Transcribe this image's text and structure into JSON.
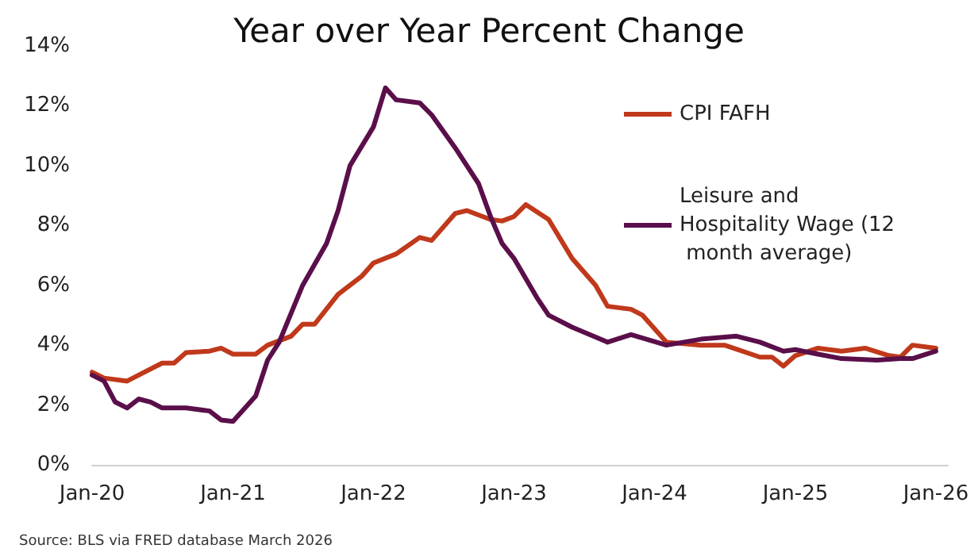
{
  "chart_data": {
    "type": "line",
    "title": "Year over Year Percent Change",
    "annotations": [
      "Source: BLS via FRED database March 2026"
    ],
    "ylim": [
      0,
      14
    ],
    "yticks": [
      {
        "value": 0,
        "label": "0%"
      },
      {
        "value": 2,
        "label": "2%"
      },
      {
        "value": 4,
        "label": "4%"
      },
      {
        "value": 6,
        "label": "6%"
      },
      {
        "value": 8,
        "label": "8%"
      },
      {
        "value": 10,
        "label": "10%"
      },
      {
        "value": 12,
        "label": "12%"
      },
      {
        "value": 14,
        "label": "14%"
      }
    ],
    "xlim": [
      "2020-01",
      "2026-02"
    ],
    "xticks": [
      {
        "value": "2020-01",
        "label": "Jan-20"
      },
      {
        "value": "2021-01",
        "label": "Jan-21"
      },
      {
        "value": "2022-01",
        "label": "Jan-22"
      },
      {
        "value": "2023-01",
        "label": "Jan-23"
      },
      {
        "value": "2024-01",
        "label": "Jan-24"
      },
      {
        "value": "2025-01",
        "label": "Jan-25"
      },
      {
        "value": "2026-01",
        "label": "Jan-26"
      }
    ],
    "grid": false,
    "legend": "top right",
    "marker": "none",
    "line_style": "solid",
    "series": [
      {
        "name": "CPI FAFH",
        "color": "#c0391b",
        "x": [
          "2020-01",
          "2020-02",
          "2020-04",
          "2020-05",
          "2020-07",
          "2020-08",
          "2020-09",
          "2020-11",
          "2020-12",
          "2021-01",
          "2021-03",
          "2021-04",
          "2021-06",
          "2021-07",
          "2021-08",
          "2021-10",
          "2021-12",
          "2022-01",
          "2022-03",
          "2022-05",
          "2022-06",
          "2022-08",
          "2022-09",
          "2022-11",
          "2022-12",
          "2023-01",
          "2023-02",
          "2023-04",
          "2023-06",
          "2023-08",
          "2023-09",
          "2023-11",
          "2023-12",
          "2024-02",
          "2024-05",
          "2024-07",
          "2024-10",
          "2024-11",
          "2024-12",
          "2025-01",
          "2025-03",
          "2025-05",
          "2025-07",
          "2025-09",
          "2025-10",
          "2025-11",
          "2026-01"
        ],
        "values": [
          3.1,
          2.9,
          2.8,
          3.0,
          3.4,
          3.4,
          3.75,
          3.8,
          3.9,
          3.7,
          3.7,
          4.0,
          4.3,
          4.7,
          4.7,
          5.7,
          6.3,
          6.75,
          7.05,
          7.6,
          7.5,
          8.4,
          8.5,
          8.2,
          8.15,
          8.3,
          8.7,
          8.2,
          6.9,
          6.0,
          5.3,
          5.2,
          5.0,
          4.1,
          4.0,
          4.0,
          3.6,
          3.6,
          3.3,
          3.65,
          3.9,
          3.8,
          3.9,
          3.65,
          3.6,
          4.0,
          3.9
        ]
      },
      {
        "name": "Leisure and Hospitality Wage (12 month average)",
        "color": "#5a0f4a",
        "x": [
          "2020-01",
          "2020-02",
          "2020-03",
          "2020-04",
          "2020-05",
          "2020-06",
          "2020-07",
          "2020-09",
          "2020-11",
          "2020-12",
          "2021-01",
          "2021-03",
          "2021-04",
          "2021-05",
          "2021-07",
          "2021-09",
          "2021-10",
          "2021-11",
          "2022-01",
          "2022-02",
          "2022-03",
          "2022-05",
          "2022-06",
          "2022-08",
          "2022-10",
          "2022-11",
          "2022-12",
          "2023-01",
          "2023-03",
          "2023-04",
          "2023-06",
          "2023-09",
          "2023-11",
          "2024-02",
          "2024-05",
          "2024-08",
          "2024-10",
          "2024-12",
          "2025-01",
          "2025-03",
          "2025-05",
          "2025-08",
          "2025-10",
          "2025-11",
          "2026-01"
        ],
        "values": [
          3.0,
          2.8,
          2.1,
          1.9,
          2.2,
          2.1,
          1.9,
          1.9,
          1.8,
          1.5,
          1.45,
          2.3,
          3.5,
          4.1,
          6.0,
          7.4,
          8.5,
          10.0,
          11.3,
          12.6,
          12.2,
          12.1,
          11.7,
          10.6,
          9.4,
          8.3,
          7.4,
          6.9,
          5.6,
          5.0,
          4.6,
          4.1,
          4.35,
          4.0,
          4.2,
          4.3,
          4.1,
          3.8,
          3.85,
          3.7,
          3.55,
          3.5,
          3.55,
          3.55,
          3.8
        ]
      }
    ]
  }
}
